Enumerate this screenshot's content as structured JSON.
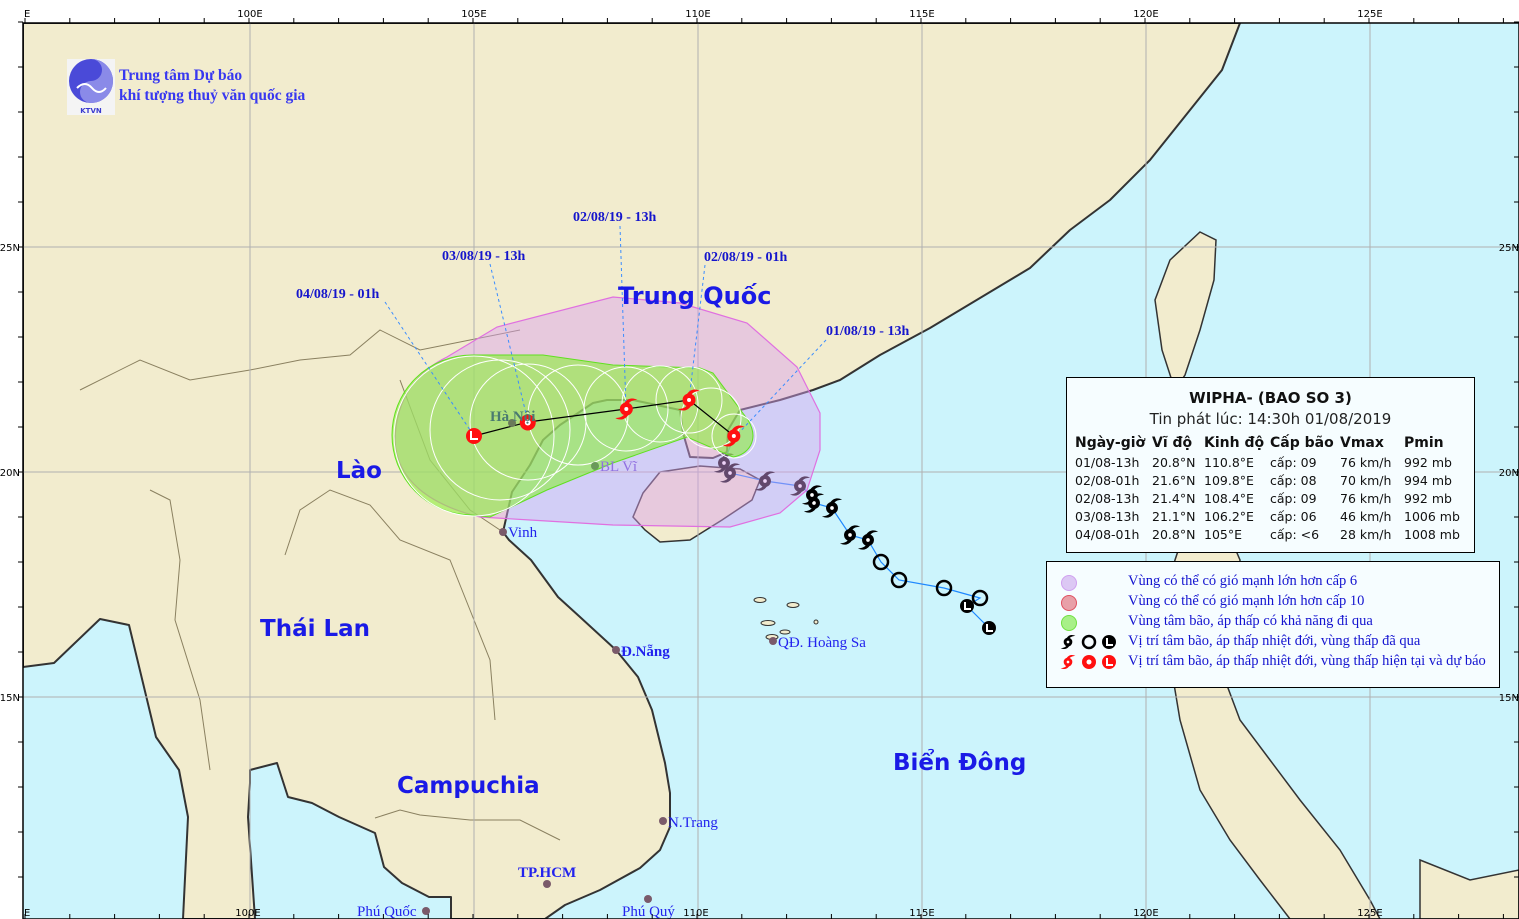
{
  "agency": {
    "line1": "Trung tâm Dự báo",
    "line2": "khí tượng thuỷ văn quốc gia",
    "logo_text": "KTVN"
  },
  "axes": {
    "top_lon": [
      "E",
      "100E",
      "105E",
      "110E",
      "115E",
      "120E",
      "125E"
    ],
    "bottom_lon": [
      "E",
      "100E",
      "110E",
      "115E",
      "120E",
      "125E"
    ],
    "left_lat": [
      "25N",
      "20N",
      "15N"
    ],
    "right_lat": [
      "25N",
      "20N",
      "15N"
    ]
  },
  "countries": [
    "Trung Quốc",
    "Lào",
    "Thái Lan",
    "Campuchia",
    "Biển Đông"
  ],
  "cities": [
    "Hà Nội",
    "BL Vĩ",
    "Vinh",
    "Đ.Nẵng",
    "QĐ. Hoàng Sa",
    "N.Trang",
    "TP.HCM",
    "Phú Quốc",
    "Phú Quý"
  ],
  "forecast_labels": [
    "04/08/19 - 01h",
    "03/08/19 - 13h",
    "02/08/19 - 13h",
    "02/08/19 - 01h",
    "01/08/19 - 13h"
  ],
  "info": {
    "title": "WIPHA- (BAO SO 3)",
    "issued": "Tin phát lúc: 14:30h 01/08/2019",
    "columns": [
      "Ngày-giờ",
      "Vĩ độ",
      "Kinh độ",
      "Cấp bão",
      "Vmax",
      "Pmin"
    ],
    "rows": [
      [
        "01/08-13h",
        "20.8°N",
        "110.8°E",
        "cấp: 09",
        "76 km/h",
        "992 mb"
      ],
      [
        "02/08-01h",
        "21.6°N",
        "109.8°E",
        "cấp: 08",
        "70 km/h",
        "994 mb"
      ],
      [
        "02/08-13h",
        "21.4°N",
        "108.4°E",
        "cấp: 09",
        "76 km/h",
        "992 mb"
      ],
      [
        "03/08-13h",
        "21.1°N",
        "106.2°E",
        "cấp: 06",
        "46 km/h",
        "1006 mb"
      ],
      [
        "04/08-01h",
        "20.8°N",
        "105°E",
        "cấp: <6",
        "28 km/h",
        "1008 mb"
      ]
    ]
  },
  "legend": [
    {
      "label": "Vùng có thể có gió mạnh lớn hơn cấp 6",
      "color": "#dcc8f4"
    },
    {
      "label": "Vùng có thể có gió mạnh lớn hơn cấp 10",
      "color": "#e8a0a8"
    },
    {
      "label": "Vùng tâm bão, áp thấp có khả năng đi qua",
      "color": "#a8f088"
    },
    {
      "label": "Vị trí tâm bão, áp thấp nhiệt đới, vùng thấp đã qua",
      "color": "#000000"
    },
    {
      "label": "Vị trí tâm bão, áp thấp nhiệt đới, vùng thấp hiện tại và dự báo",
      "color": "#ff1010"
    }
  ],
  "colors": {
    "land": "#f2ecce",
    "sea": "#ccf4fc",
    "wind_zone": "#d9a0f0",
    "cone": "#8cf03c",
    "forecast_symbol": "#ff1010",
    "past_symbol": "#000000",
    "label_blue": "#1a1ae6"
  }
}
